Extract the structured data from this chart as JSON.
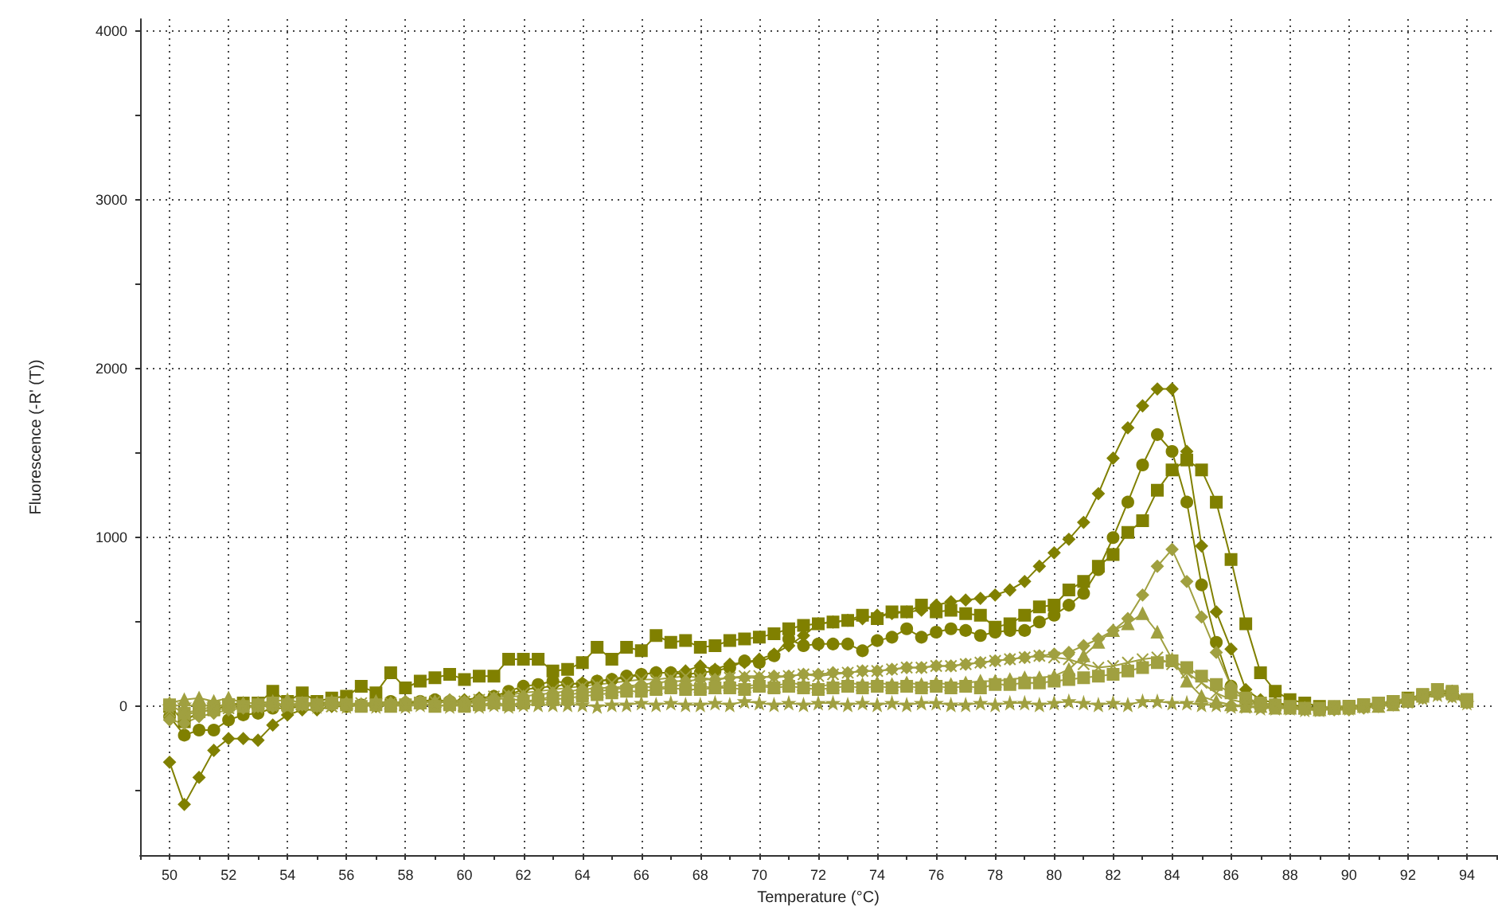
{
  "chart_data": {
    "type": "line",
    "xlabel": "Temperature (°C)",
    "ylabel": "Fluorescence (-R' (T))",
    "xlim": [
      49,
      95
    ],
    "ylim": [
      -880,
      4070
    ],
    "xticks": [
      {
        "value": 49,
        "label": null
      },
      50,
      {
        "value": 51,
        "label": null
      },
      52,
      {
        "value": 53,
        "label": null
      },
      54,
      {
        "value": 55,
        "label": null
      },
      56,
      {
        "value": 57,
        "label": null
      },
      58,
      {
        "value": 59,
        "label": null
      },
      60,
      {
        "value": 61,
        "label": null
      },
      62,
      {
        "value": 63,
        "label": null
      },
      64,
      {
        "value": 65,
        "label": null
      },
      66,
      {
        "value": 67,
        "label": null
      },
      68,
      {
        "value": 69,
        "label": null
      },
      70,
      {
        "value": 71,
        "label": null
      },
      72,
      {
        "value": 73,
        "label": null
      },
      74,
      {
        "value": 75,
        "label": null
      },
      76,
      {
        "value": 77,
        "label": null
      },
      78,
      {
        "value": 79,
        "label": null
      },
      80,
      {
        "value": 81,
        "label": null
      },
      82,
      {
        "value": 83,
        "label": null
      },
      84,
      {
        "value": 85,
        "label": null
      },
      86,
      {
        "value": 87,
        "label": null
      },
      88,
      {
        "value": 89,
        "label": null
      },
      90,
      {
        "value": 91,
        "label": null
      },
      92,
      {
        "value": 93,
        "label": null
      },
      94,
      {
        "value": 95,
        "label": null
      }
    ],
    "yticks": [
      {
        "value": -500,
        "label": null
      },
      0,
      {
        "value": 500,
        "label": null
      },
      1000,
      {
        "value": 1500,
        "label": null
      },
      2000,
      {
        "value": 2500,
        "label": null
      },
      3000,
      {
        "value": 3500,
        "label": null
      },
      4000
    ],
    "grid": true,
    "line_style": "solid",
    "x": [
      50,
      50.5,
      51,
      51.5,
      52,
      52.5,
      53,
      53.5,
      54,
      54.5,
      55,
      55.5,
      56,
      56.5,
      57,
      57.5,
      58,
      58.5,
      59,
      59.5,
      60,
      60.5,
      61,
      61.5,
      62,
      62.5,
      63,
      63.5,
      64,
      64.5,
      65,
      65.5,
      66,
      66.5,
      67,
      67.5,
      68,
      68.5,
      69,
      69.5,
      70,
      70.5,
      71,
      71.5,
      72,
      72.5,
      73,
      73.5,
      74,
      74.5,
      75,
      75.5,
      76,
      76.5,
      77,
      77.5,
      78,
      78.5,
      79,
      79.5,
      80,
      80.5,
      81,
      81.5,
      82,
      82.5,
      83,
      83.5,
      84,
      84.5,
      85,
      85.5,
      86,
      86.5,
      87,
      87.5,
      88,
      88.5,
      89,
      89.5,
      90,
      90.5,
      91,
      91.5,
      92,
      92.5,
      93,
      93.5,
      94
    ],
    "series": [
      {
        "color": "#808000",
        "marker": "diamond",
        "values": [
          -330,
          -580,
          -420,
          -260,
          -190,
          -190,
          -200,
          -110,
          -50,
          -20,
          -20,
          0,
          0,
          10,
          0,
          10,
          20,
          20,
          30,
          30,
          40,
          50,
          60,
          70,
          100,
          110,
          120,
          130,
          140,
          150,
          160,
          170,
          190,
          200,
          200,
          210,
          240,
          220,
          250,
          260,
          280,
          310,
          360,
          420,
          490,
          500,
          510,
          520,
          540,
          550,
          560,
          570,
          600,
          620,
          630,
          640,
          660,
          690,
          740,
          830,
          910,
          990,
          1090,
          1260,
          1470,
          1650,
          1780,
          1880,
          1880,
          1510,
          950,
          560,
          340,
          100,
          40,
          20,
          10,
          0,
          -10,
          -10,
          0,
          0,
          10,
          20,
          30,
          60,
          80,
          90,
          40
        ]
      },
      {
        "color": "#808000",
        "marker": "square",
        "values": [
          0,
          -90,
          -30,
          -20,
          10,
          20,
          20,
          90,
          30,
          80,
          30,
          50,
          60,
          120,
          80,
          200,
          110,
          150,
          170,
          190,
          160,
          180,
          180,
          280,
          280,
          280,
          210,
          220,
          260,
          350,
          280,
          350,
          330,
          420,
          380,
          390,
          350,
          360,
          390,
          400,
          410,
          430,
          460,
          480,
          490,
          500,
          510,
          540,
          520,
          560,
          560,
          600,
          560,
          570,
          550,
          540,
          470,
          490,
          540,
          590,
          600,
          690,
          740,
          830,
          900,
          1030,
          1100,
          1280,
          1400,
          1460,
          1400,
          1210,
          870,
          490,
          200,
          90,
          40,
          20,
          0,
          -10,
          0,
          10,
          20,
          30,
          50,
          70,
          100,
          80,
          40
        ]
      },
      {
        "color": "#808000",
        "marker": "circle",
        "values": [
          -60,
          -170,
          -140,
          -140,
          -80,
          -50,
          -40,
          -10,
          -10,
          0,
          10,
          20,
          0,
          10,
          20,
          30,
          20,
          30,
          40,
          30,
          20,
          40,
          60,
          90,
          120,
          130,
          150,
          140,
          130,
          150,
          160,
          180,
          190,
          200,
          200,
          190,
          200,
          210,
          230,
          270,
          260,
          300,
          400,
          360,
          370,
          370,
          370,
          330,
          390,
          410,
          460,
          410,
          440,
          460,
          450,
          420,
          440,
          450,
          450,
          500,
          540,
          600,
          670,
          810,
          1000,
          1210,
          1430,
          1610,
          1510,
          1210,
          720,
          380,
          120,
          40,
          20,
          10,
          0,
          -10,
          -20,
          -10,
          -10,
          0,
          10,
          20,
          40,
          60,
          80,
          70,
          30
        ]
      },
      {
        "color": "#a0a040",
        "marker": "diamond",
        "values": [
          -80,
          -100,
          -60,
          -40,
          -20,
          -10,
          0,
          0,
          10,
          10,
          0,
          10,
          20,
          10,
          20,
          20,
          30,
          30,
          20,
          40,
          30,
          40,
          50,
          60,
          60,
          70,
          80,
          90,
          100,
          110,
          110,
          120,
          130,
          140,
          150,
          150,
          160,
          160,
          170,
          170,
          170,
          180,
          180,
          190,
          190,
          200,
          200,
          210,
          210,
          220,
          230,
          230,
          240,
          240,
          250,
          260,
          270,
          280,
          290,
          300,
          310,
          320,
          360,
          400,
          450,
          520,
          660,
          830,
          930,
          740,
          530,
          320,
          120,
          40,
          10,
          0,
          -10,
          -20,
          -20,
          -20,
          -20,
          -10,
          0,
          10,
          30,
          50,
          70,
          60,
          20
        ]
      },
      {
        "color": "#a0a040",
        "marker": "triangle",
        "values": [
          20,
          40,
          50,
          30,
          50,
          20,
          20,
          30,
          40,
          20,
          20,
          30,
          20,
          10,
          30,
          20,
          10,
          20,
          30,
          20,
          10,
          30,
          40,
          50,
          30,
          40,
          60,
          70,
          80,
          90,
          100,
          110,
          120,
          110,
          120,
          130,
          120,
          110,
          130,
          120,
          130,
          120,
          140,
          130,
          120,
          130,
          140,
          130,
          140,
          130,
          140,
          130,
          140,
          130,
          140,
          150,
          150,
          160,
          170,
          170,
          180,
          220,
          300,
          380,
          450,
          490,
          550,
          440,
          280,
          150,
          60,
          30,
          10,
          0,
          0,
          -10,
          -10,
          -10,
          -20,
          -10,
          -10,
          0,
          0,
          10,
          30,
          60,
          90,
          80,
          30
        ]
      },
      {
        "color": "#a0a040",
        "marker": "square",
        "values": [
          10,
          -40,
          -20,
          0,
          10,
          0,
          10,
          20,
          10,
          20,
          10,
          20,
          10,
          0,
          10,
          0,
          10,
          20,
          0,
          10,
          0,
          10,
          20,
          10,
          20,
          40,
          40,
          50,
          60,
          70,
          80,
          90,
          90,
          100,
          110,
          100,
          100,
          110,
          110,
          100,
          120,
          110,
          120,
          110,
          100,
          110,
          120,
          110,
          120,
          110,
          120,
          110,
          120,
          110,
          120,
          110,
          130,
          130,
          140,
          140,
          150,
          160,
          170,
          180,
          190,
          210,
          230,
          260,
          270,
          230,
          180,
          130,
          80,
          50,
          20,
          10,
          0,
          -10,
          -10,
          0,
          0,
          10,
          20,
          30,
          40,
          70,
          100,
          90,
          40
        ]
      },
      {
        "color": "#a0a040",
        "marker": "cross",
        "values": [
          -30,
          -50,
          -30,
          -20,
          -10,
          0,
          0,
          10,
          0,
          10,
          10,
          0,
          10,
          20,
          10,
          20,
          10,
          20,
          30,
          20,
          30,
          40,
          60,
          70,
          80,
          90,
          100,
          110,
          120,
          130,
          140,
          150,
          160,
          160,
          170,
          180,
          170,
          160,
          170,
          180,
          180,
          170,
          180,
          190,
          180,
          190,
          200,
          210,
          210,
          220,
          230,
          230,
          240,
          240,
          250,
          260,
          270,
          280,
          290,
          300,
          290,
          280,
          250,
          230,
          240,
          260,
          280,
          290,
          250,
          200,
          140,
          80,
          40,
          20,
          10,
          0,
          -10,
          -10,
          -10,
          0,
          0,
          10,
          20,
          30,
          50,
          60,
          90,
          70,
          30
        ]
      },
      {
        "color": "#a0a040",
        "marker": "star",
        "values": [
          0,
          10,
          0,
          10,
          0,
          10,
          0,
          10,
          0,
          10,
          0,
          10,
          0,
          10,
          0,
          10,
          0,
          10,
          10,
          0,
          10,
          0,
          10,
          0,
          10,
          10,
          10,
          10,
          10,
          0,
          10,
          10,
          20,
          10,
          20,
          10,
          10,
          20,
          10,
          30,
          20,
          10,
          20,
          10,
          20,
          20,
          10,
          20,
          10,
          20,
          10,
          20,
          20,
          10,
          10,
          20,
          10,
          20,
          20,
          10,
          20,
          30,
          20,
          10,
          20,
          10,
          30,
          30,
          20,
          20,
          10,
          10,
          0,
          0,
          -10,
          -10,
          -10,
          -20,
          -20,
          -10,
          -10,
          0,
          10,
          20,
          30,
          50,
          70,
          60,
          20
        ]
      }
    ]
  }
}
